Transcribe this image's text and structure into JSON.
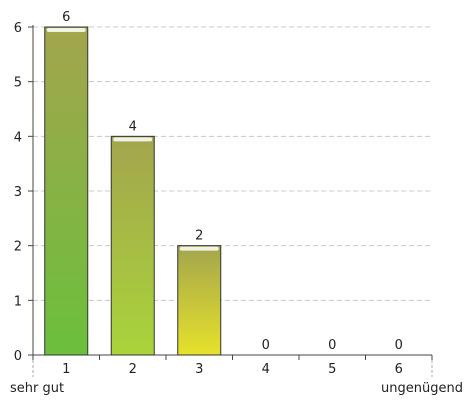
{
  "chart_data": {
    "type": "bar",
    "categories": [
      "1",
      "2",
      "3",
      "4",
      "5",
      "6"
    ],
    "values": [
      6,
      4,
      2,
      0,
      0,
      0
    ],
    "data_labels": [
      "6",
      "4",
      "2",
      "0",
      "0",
      "0"
    ],
    "x_end_labels": {
      "left": "sehr gut",
      "right": "ungenügend"
    },
    "title": "",
    "xlabel": "",
    "ylabel": "",
    "ylim": [
      0,
      6
    ],
    "yticks": [
      "0",
      "1",
      "2",
      "3",
      "4",
      "5",
      "6"
    ],
    "grid": true,
    "legend": "none",
    "bar_gradient": {
      "top": "#a3a54d",
      "bottom": "#7ac142"
    },
    "bar_colors_bottom": [
      "#6bbf3c",
      "#a9d43a",
      "#e6e22b"
    ]
  }
}
